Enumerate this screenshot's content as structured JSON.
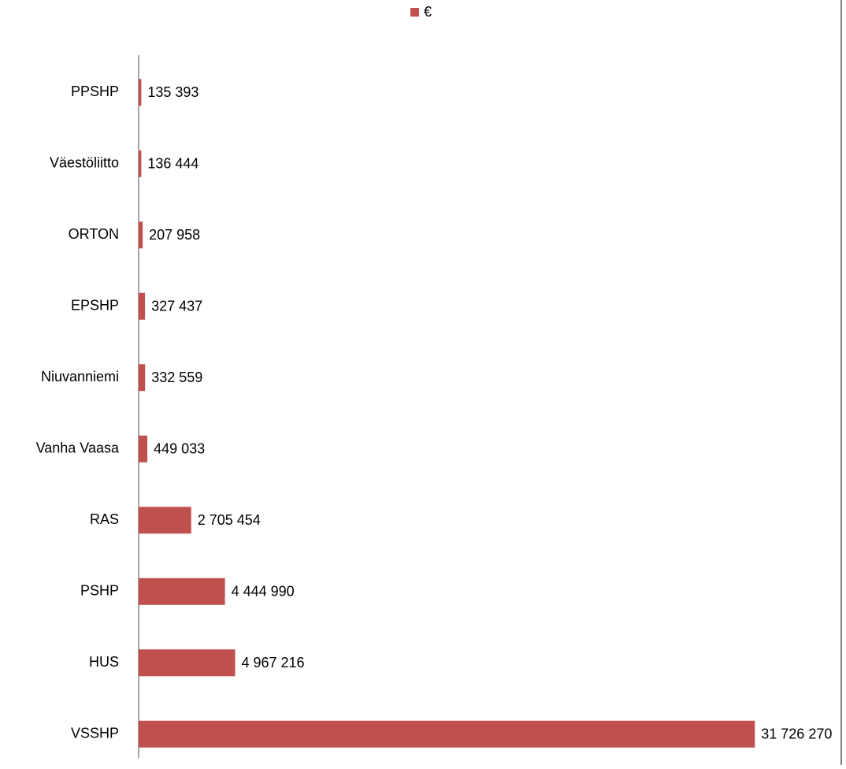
{
  "chart_data": {
    "type": "bar",
    "orientation": "horizontal",
    "categories": [
      "PPSHP",
      "Väestöliitto",
      "ORTON",
      "EPSHP",
      "Niuvanniemi",
      "Vanha Vaasa",
      "RAS",
      "PSHP",
      "HUS",
      "VSSHP"
    ],
    "series": [
      {
        "name": "€",
        "color": "#c0504d",
        "values": [
          135393,
          136444,
          207958,
          327437,
          332559,
          449033,
          2705454,
          4444990,
          4967216,
          31726270
        ],
        "value_labels": [
          "135 393",
          "136 444",
          "207 958",
          "327 437",
          "332 559",
          "449 033",
          "2 705 454",
          "4 444 990",
          "4 967 216",
          "31 726 270"
        ]
      }
    ],
    "xlim": [
      0,
      35000000
    ],
    "legend": "top"
  }
}
